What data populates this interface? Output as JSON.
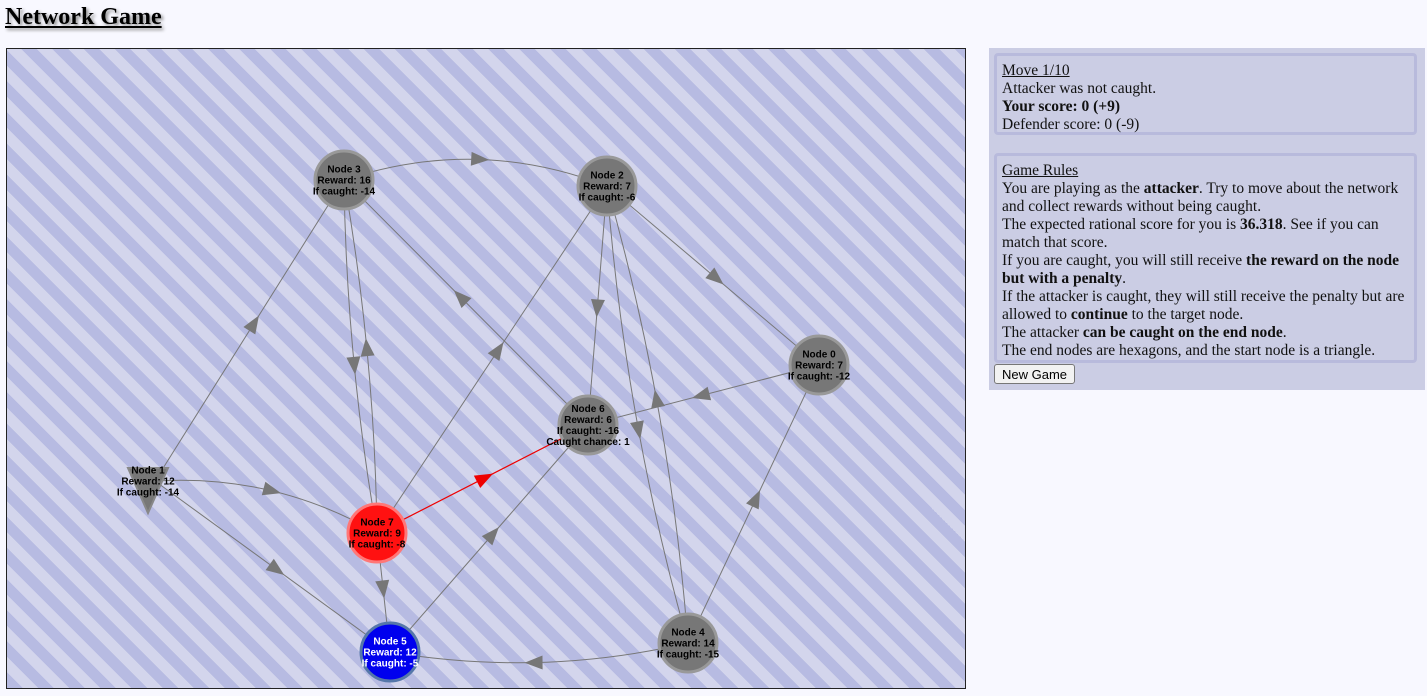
{
  "title": "Network Game",
  "status": {
    "move": "Move 1/10",
    "message": "Attacker was not caught.",
    "your_score": "Your score: 0 (+9)",
    "defender_score": "Defender score: 0 (-9)"
  },
  "rules": {
    "heading": "Game Rules",
    "p1_a": "You are playing as the ",
    "p1_b": "attacker",
    "p1_c": ". Try to move about the network and collect rewards without being caught.",
    "p2_a": "The expected rational score for you is ",
    "p2_b": "36.318",
    "p2_c": ". See if you can match that score.",
    "p3_a": "If you are caught, you will still receive ",
    "p3_b": "the reward on the node but with a penalty",
    "p3_c": ".",
    "p4_a": "If the attacker is caught, they will still receive the penalty but are allowed to ",
    "p4_b": "continue",
    "p4_c": " to the target node.",
    "p5_a": "The attacker ",
    "p5_b": "can be caught on the end node",
    "p5_c": ".",
    "p6": "The end nodes are hexagons, and the start node is a triangle."
  },
  "new_game_label": "New Game",
  "colors": {
    "node_default": "#777777",
    "attacker": "#ff1111",
    "defender": "#0000ee",
    "edge": "#777777",
    "active_edge": "#ee0000"
  },
  "nodes": [
    {
      "id": 0,
      "lines": [
        "Node 0",
        "Reward: 7",
        "If caught:  -12"
      ],
      "shape": "circle",
      "state": "default"
    },
    {
      "id": 1,
      "lines": [
        "Node 1",
        "Reward: 12",
        "If caught:  -14"
      ],
      "shape": "triangle",
      "state": "default"
    },
    {
      "id": 2,
      "lines": [
        "Node 2",
        "Reward: 7",
        "If caught:  -6"
      ],
      "shape": "circle",
      "state": "default"
    },
    {
      "id": 3,
      "lines": [
        "Node 3",
        "Reward: 16",
        "If caught:  -14"
      ],
      "shape": "circle",
      "state": "default"
    },
    {
      "id": 4,
      "lines": [
        "Node 4",
        "Reward: 14",
        "If caught:  -15"
      ],
      "shape": "circle",
      "state": "default"
    },
    {
      "id": 5,
      "lines": [
        "Node 5",
        "Reward: 12",
        "If caught:  -5"
      ],
      "shape": "circle",
      "state": "defender"
    },
    {
      "id": 6,
      "lines": [
        "Node 6",
        "Reward: 6",
        "If caught:  -16",
        "Caught chance: 1"
      ],
      "shape": "circle",
      "state": "default"
    },
    {
      "id": 7,
      "lines": [
        "Node 7",
        "Reward: 9",
        "If caught:  -8"
      ],
      "shape": "circle",
      "state": "attacker"
    }
  ],
  "edges": [
    {
      "from": 1,
      "to": 3
    },
    {
      "from": 3,
      "to": 7
    },
    {
      "from": 7,
      "to": 3
    },
    {
      "from": 3,
      "to": 2
    },
    {
      "from": 2,
      "to": 0
    },
    {
      "from": 2,
      "to": 6
    },
    {
      "from": 2,
      "to": 4
    },
    {
      "from": 4,
      "to": 2
    },
    {
      "from": 6,
      "to": 3
    },
    {
      "from": 7,
      "to": 2
    },
    {
      "from": 0,
      "to": 6
    },
    {
      "from": 1,
      "to": 7
    },
    {
      "from": 1,
      "to": 5
    },
    {
      "from": 5,
      "to": 6
    },
    {
      "from": 4,
      "to": 0
    },
    {
      "from": 4,
      "to": 5
    },
    {
      "from": 7,
      "to": 5
    },
    {
      "from": 7,
      "to": 6,
      "active": true
    }
  ]
}
